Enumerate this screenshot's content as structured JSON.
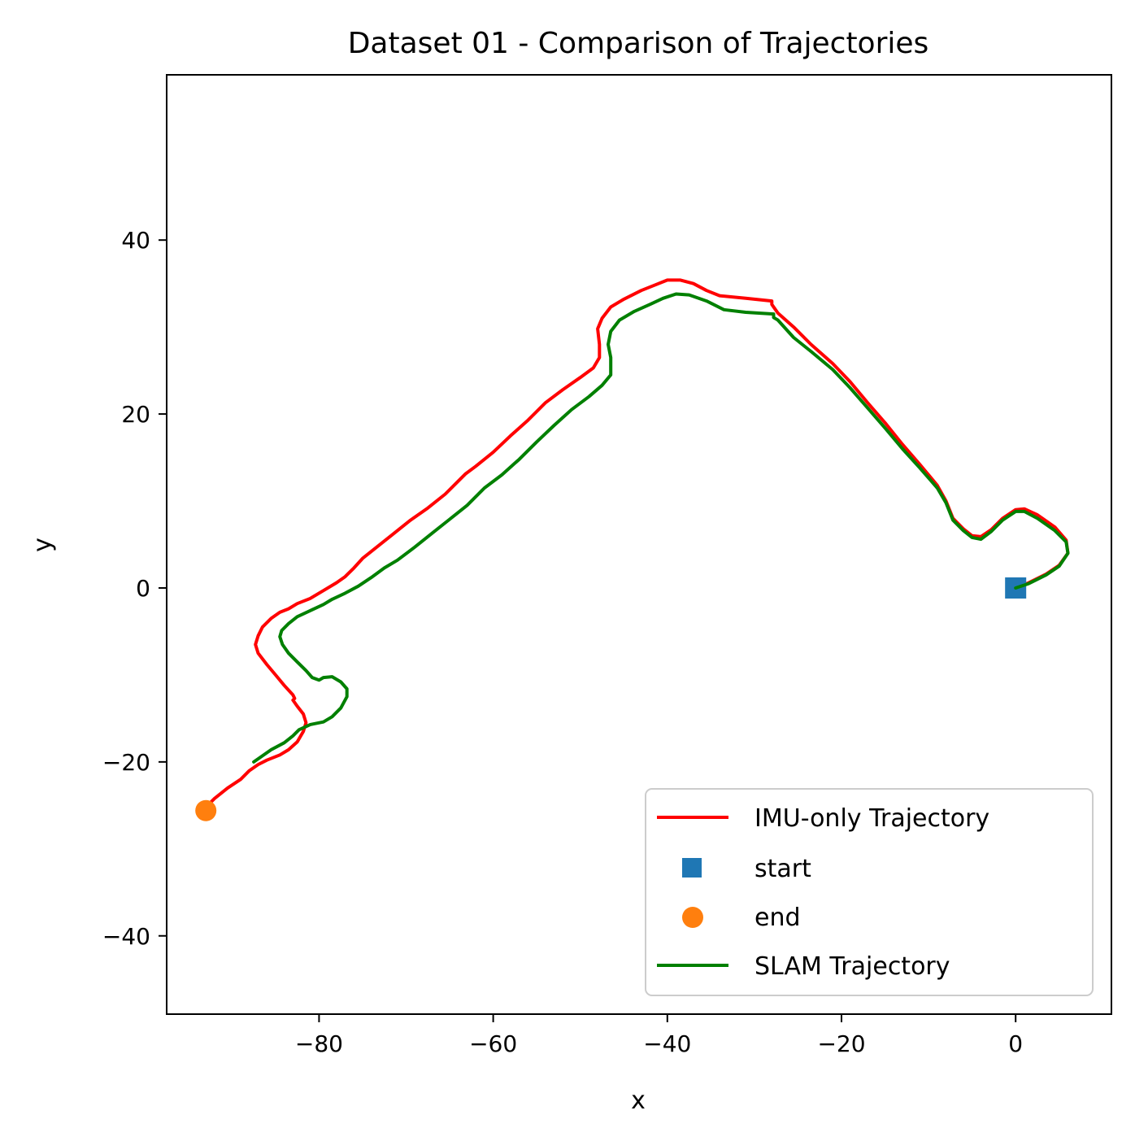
{
  "chart_data": {
    "type": "line",
    "title": "Dataset 01 - Comparison of Trajectories",
    "xlabel": "x",
    "ylabel": "y",
    "xlim": [
      -97.5,
      11
    ],
    "ylim": [
      -49,
      59
    ],
    "xticks": [
      -80,
      -60,
      -40,
      -20,
      0
    ],
    "yticks": [
      -40,
      -20,
      0,
      20,
      40
    ],
    "xtick_labels": [
      "−80",
      "−60",
      "−40",
      "−20",
      "0"
    ],
    "ytick_labels": [
      "−40",
      "−20",
      "0",
      "20",
      "40"
    ],
    "grid": false,
    "legend_position": "lower-right",
    "series": [
      {
        "name": "IMU-only Trajectory",
        "kind": "line",
        "color": "#ff0000",
        "points": [
          [
            0,
            0
          ],
          [
            1.5,
            0.6
          ],
          [
            3.5,
            1.6
          ],
          [
            5,
            2.6
          ],
          [
            6,
            4
          ],
          [
            5.8,
            5.5
          ],
          [
            4.5,
            7
          ],
          [
            2.5,
            8.4
          ],
          [
            1,
            9.1
          ],
          [
            0,
            9
          ],
          [
            -1.5,
            8
          ],
          [
            -2.8,
            6.7
          ],
          [
            -4,
            5.9
          ],
          [
            -5,
            6
          ],
          [
            -6,
            6.8
          ],
          [
            -7.2,
            8
          ],
          [
            -8,
            10
          ],
          [
            -9,
            11.8
          ],
          [
            -11,
            14.2
          ],
          [
            -13,
            16.5
          ],
          [
            -15,
            19
          ],
          [
            -17,
            21.3
          ],
          [
            -19,
            23.7
          ],
          [
            -21,
            25.8
          ],
          [
            -23.5,
            28
          ],
          [
            -25.5,
            30
          ],
          [
            -27.3,
            31.6
          ],
          [
            -28,
            32.6
          ],
          [
            -28,
            33
          ],
          [
            -31,
            33.3
          ],
          [
            -34,
            33.6
          ],
          [
            -35.5,
            34.2
          ],
          [
            -37,
            35
          ],
          [
            -38.5,
            35.4
          ],
          [
            -40,
            35.4
          ],
          [
            -41.5,
            34.8
          ],
          [
            -43,
            34.2
          ],
          [
            -45,
            33.2
          ],
          [
            -46.5,
            32.3
          ],
          [
            -47.5,
            31
          ],
          [
            -48,
            29.8
          ],
          [
            -47.8,
            28
          ],
          [
            -47.8,
            26.5
          ],
          [
            -48.5,
            25.3
          ],
          [
            -50,
            24.2
          ],
          [
            -52,
            22.8
          ],
          [
            -54,
            21.3
          ],
          [
            -56,
            19.3
          ],
          [
            -58,
            17.5
          ],
          [
            -60,
            15.6
          ],
          [
            -62,
            14
          ],
          [
            -63.2,
            13.1
          ],
          [
            -63.8,
            12.5
          ],
          [
            -65.5,
            10.8
          ],
          [
            -67.5,
            9.2
          ],
          [
            -69.5,
            7.8
          ],
          [
            -71.5,
            6.2
          ],
          [
            -73.5,
            4.6
          ],
          [
            -75,
            3.4
          ],
          [
            -76,
            2.3
          ],
          [
            -77,
            1.3
          ],
          [
            -78,
            0.6
          ],
          [
            -79.5,
            -0.3
          ],
          [
            -81,
            -1.2
          ],
          [
            -82.5,
            -1.8
          ],
          [
            -83.5,
            -2.4
          ],
          [
            -84.5,
            -2.8
          ],
          [
            -85.5,
            -3.5
          ],
          [
            -86.5,
            -4.5
          ],
          [
            -87,
            -5.5
          ],
          [
            -87.3,
            -6.5
          ],
          [
            -87,
            -7.5
          ],
          [
            -86,
            -8.8
          ],
          [
            -85,
            -10
          ],
          [
            -84,
            -11.2
          ],
          [
            -83,
            -12.3
          ],
          [
            -82.8,
            -12.7
          ],
          [
            -83,
            -12.9
          ],
          [
            -82.5,
            -13.6
          ],
          [
            -81.8,
            -14.5
          ],
          [
            -81.5,
            -15.5
          ],
          [
            -81.8,
            -16.5
          ],
          [
            -82.5,
            -17.7
          ],
          [
            -83.5,
            -18.6
          ],
          [
            -84.5,
            -19.2
          ],
          [
            -86,
            -19.8
          ],
          [
            -87,
            -20.3
          ],
          [
            -88,
            -21
          ],
          [
            -89,
            -22
          ],
          [
            -90.5,
            -23
          ],
          [
            -92,
            -24.2
          ],
          [
            -93,
            -25.2
          ]
        ]
      },
      {
        "name": "start",
        "kind": "marker",
        "marker": "square",
        "color": "#1f77b4",
        "points": [
          [
            0,
            0
          ]
        ]
      },
      {
        "name": "end",
        "kind": "marker",
        "marker": "circle",
        "color": "#ff7f0e",
        "points": [
          [
            -93,
            -25.6
          ]
        ]
      },
      {
        "name": "SLAM Trajectory",
        "kind": "line",
        "color": "#008000",
        "points": [
          [
            0,
            0
          ],
          [
            1.5,
            0.5
          ],
          [
            3.5,
            1.5
          ],
          [
            5,
            2.5
          ],
          [
            6,
            4
          ],
          [
            5.8,
            5.3
          ],
          [
            4.5,
            6.6
          ],
          [
            2.5,
            8
          ],
          [
            1,
            8.8
          ],
          [
            0,
            8.8
          ],
          [
            -1.5,
            7.8
          ],
          [
            -2.8,
            6.5
          ],
          [
            -4,
            5.6
          ],
          [
            -5,
            5.8
          ],
          [
            -6,
            6.6
          ],
          [
            -7.2,
            7.8
          ],
          [
            -8,
            9.8
          ],
          [
            -9,
            11.5
          ],
          [
            -11,
            13.8
          ],
          [
            -13,
            16
          ],
          [
            -15,
            18.4
          ],
          [
            -17,
            20.7
          ],
          [
            -19,
            23
          ],
          [
            -21,
            25.1
          ],
          [
            -23.5,
            27.2
          ],
          [
            -25.5,
            28.8
          ],
          [
            -27.3,
            30.8
          ],
          [
            -27.8,
            31.1
          ],
          [
            -27.8,
            31.5
          ],
          [
            -31,
            31.7
          ],
          [
            -33.5,
            32
          ],
          [
            -35.5,
            33
          ],
          [
            -37.5,
            33.7
          ],
          [
            -39,
            33.8
          ],
          [
            -40.5,
            33.3
          ],
          [
            -42,
            32.6
          ],
          [
            -43.8,
            31.8
          ],
          [
            -45.5,
            30.8
          ],
          [
            -46.5,
            29.5
          ],
          [
            -46.8,
            28
          ],
          [
            -46.5,
            26.5
          ],
          [
            -46.5,
            24.5
          ],
          [
            -47.5,
            23.3
          ],
          [
            -49,
            22
          ],
          [
            -51,
            20.5
          ],
          [
            -53,
            18.7
          ],
          [
            -55,
            16.8
          ],
          [
            -57,
            14.8
          ],
          [
            -59,
            13
          ],
          [
            -61,
            11.5
          ],
          [
            -61.3,
            11.2
          ],
          [
            -63,
            9.5
          ],
          [
            -65,
            7.9
          ],
          [
            -67,
            6.3
          ],
          [
            -69,
            4.7
          ],
          [
            -71,
            3.2
          ],
          [
            -72.5,
            2.3
          ],
          [
            -74,
            1.2
          ],
          [
            -75.5,
            0.2
          ],
          [
            -77,
            -0.6
          ],
          [
            -78.5,
            -1.3
          ],
          [
            -79.5,
            -1.9
          ],
          [
            -81,
            -2.6
          ],
          [
            -82.5,
            -3.3
          ],
          [
            -83.5,
            -4.1
          ],
          [
            -84.3,
            -4.9
          ],
          [
            -84.5,
            -5.6
          ],
          [
            -84.2,
            -6.5
          ],
          [
            -83.5,
            -7.5
          ],
          [
            -82.5,
            -8.5
          ],
          [
            -81.5,
            -9.5
          ],
          [
            -80.8,
            -10.3
          ],
          [
            -80,
            -10.6
          ],
          [
            -79.5,
            -10.3
          ],
          [
            -78.5,
            -10.2
          ],
          [
            -77.5,
            -10.8
          ],
          [
            -76.8,
            -11.6
          ],
          [
            -76.8,
            -12.5
          ],
          [
            -77.5,
            -13.8
          ],
          [
            -78.5,
            -14.8
          ],
          [
            -79.5,
            -15.4
          ],
          [
            -81,
            -15.7
          ],
          [
            -82.3,
            -16.3
          ],
          [
            -83,
            -17
          ],
          [
            -84,
            -17.8
          ],
          [
            -85.5,
            -18.6
          ],
          [
            -86.5,
            -19.3
          ],
          [
            -87.5,
            -20
          ]
        ]
      }
    ]
  },
  "colors": {
    "imu": "#ff0000",
    "start": "#1f77b4",
    "end": "#ff7f0e",
    "slam": "#008000"
  }
}
